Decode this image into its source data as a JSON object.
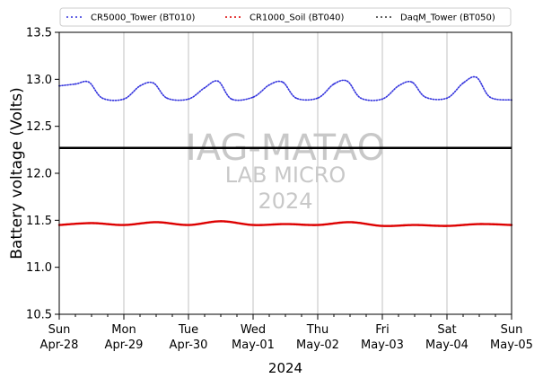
{
  "chart_data": {
    "type": "line",
    "title": "",
    "xlabel": "2024",
    "ylabel": "Battery voltage (Volts)",
    "ylim": [
      10.5,
      13.5
    ],
    "xlim": [
      "2024-04-28",
      "2024-05-05"
    ],
    "yticks": [
      "10.5",
      "11.0",
      "11.5",
      "12.0",
      "12.5",
      "13.0",
      "13.5"
    ],
    "xticks": [
      {
        "day": "Sun",
        "date": "Apr-28"
      },
      {
        "day": "Mon",
        "date": "Apr-29"
      },
      {
        "day": "Tue",
        "date": "Apr-30"
      },
      {
        "day": "Wed",
        "date": "May-01"
      },
      {
        "day": "Thu",
        "date": "May-02"
      },
      {
        "day": "Fri",
        "date": "May-03"
      },
      {
        "day": "Sat",
        "date": "May-04"
      },
      {
        "day": "Sun",
        "date": "May-05"
      }
    ],
    "grid": "vertical-major",
    "legend_position": "top",
    "reference_line": {
      "y": 12.27,
      "color": "#000000"
    },
    "watermark": {
      "line1": "IAG-MATAO",
      "line2": "LAB MICRO",
      "line3": "2024"
    },
    "series": [
      {
        "name": "CR5000_Tower (BT010)",
        "color": "#3333dd",
        "x": [
          "2024-04-28T00:00",
          "2024-04-28T06:00",
          "2024-04-28T11:00",
          "2024-04-28T16:00",
          "2024-04-29T00:00",
          "2024-04-29T06:00",
          "2024-04-29T11:00",
          "2024-04-29T16:00",
          "2024-04-30T00:00",
          "2024-04-30T06:00",
          "2024-04-30T11:00",
          "2024-04-30T16:00",
          "2024-05-01T00:00",
          "2024-05-01T06:00",
          "2024-05-01T11:00",
          "2024-05-01T16:00",
          "2024-05-02T00:00",
          "2024-05-02T06:00",
          "2024-05-02T11:00",
          "2024-05-02T16:00",
          "2024-05-03T00:00",
          "2024-05-03T06:00",
          "2024-05-03T11:00",
          "2024-05-03T16:00",
          "2024-05-04T00:00",
          "2024-05-04T06:00",
          "2024-05-04T11:00",
          "2024-05-04T16:00",
          "2024-05-05T00:00"
        ],
        "values": [
          12.93,
          12.95,
          12.97,
          12.8,
          12.79,
          12.93,
          12.96,
          12.8,
          12.79,
          12.91,
          12.98,
          12.79,
          12.81,
          12.94,
          12.97,
          12.8,
          12.8,
          12.95,
          12.98,
          12.8,
          12.79,
          12.93,
          12.97,
          12.81,
          12.8,
          12.96,
          13.02,
          12.81,
          12.78
        ]
      },
      {
        "name": "CR1000_Soil (BT040)",
        "color": "#dd0000",
        "x": [
          "2024-04-28T00:00",
          "2024-04-28T12:00",
          "2024-04-29T00:00",
          "2024-04-29T12:00",
          "2024-04-30T00:00",
          "2024-04-30T12:00",
          "2024-05-01T00:00",
          "2024-05-01T12:00",
          "2024-05-02T00:00",
          "2024-05-02T12:00",
          "2024-05-03T00:00",
          "2024-05-03T12:00",
          "2024-05-04T00:00",
          "2024-05-04T12:00",
          "2024-05-05T00:00"
        ],
        "values": [
          11.45,
          11.47,
          11.45,
          11.48,
          11.45,
          11.49,
          11.45,
          11.46,
          11.45,
          11.48,
          11.44,
          11.45,
          11.44,
          11.46,
          11.45
        ]
      },
      {
        "name": "DaqM_Tower (BT050)",
        "color": "#333333",
        "x": [],
        "values": []
      }
    ]
  }
}
